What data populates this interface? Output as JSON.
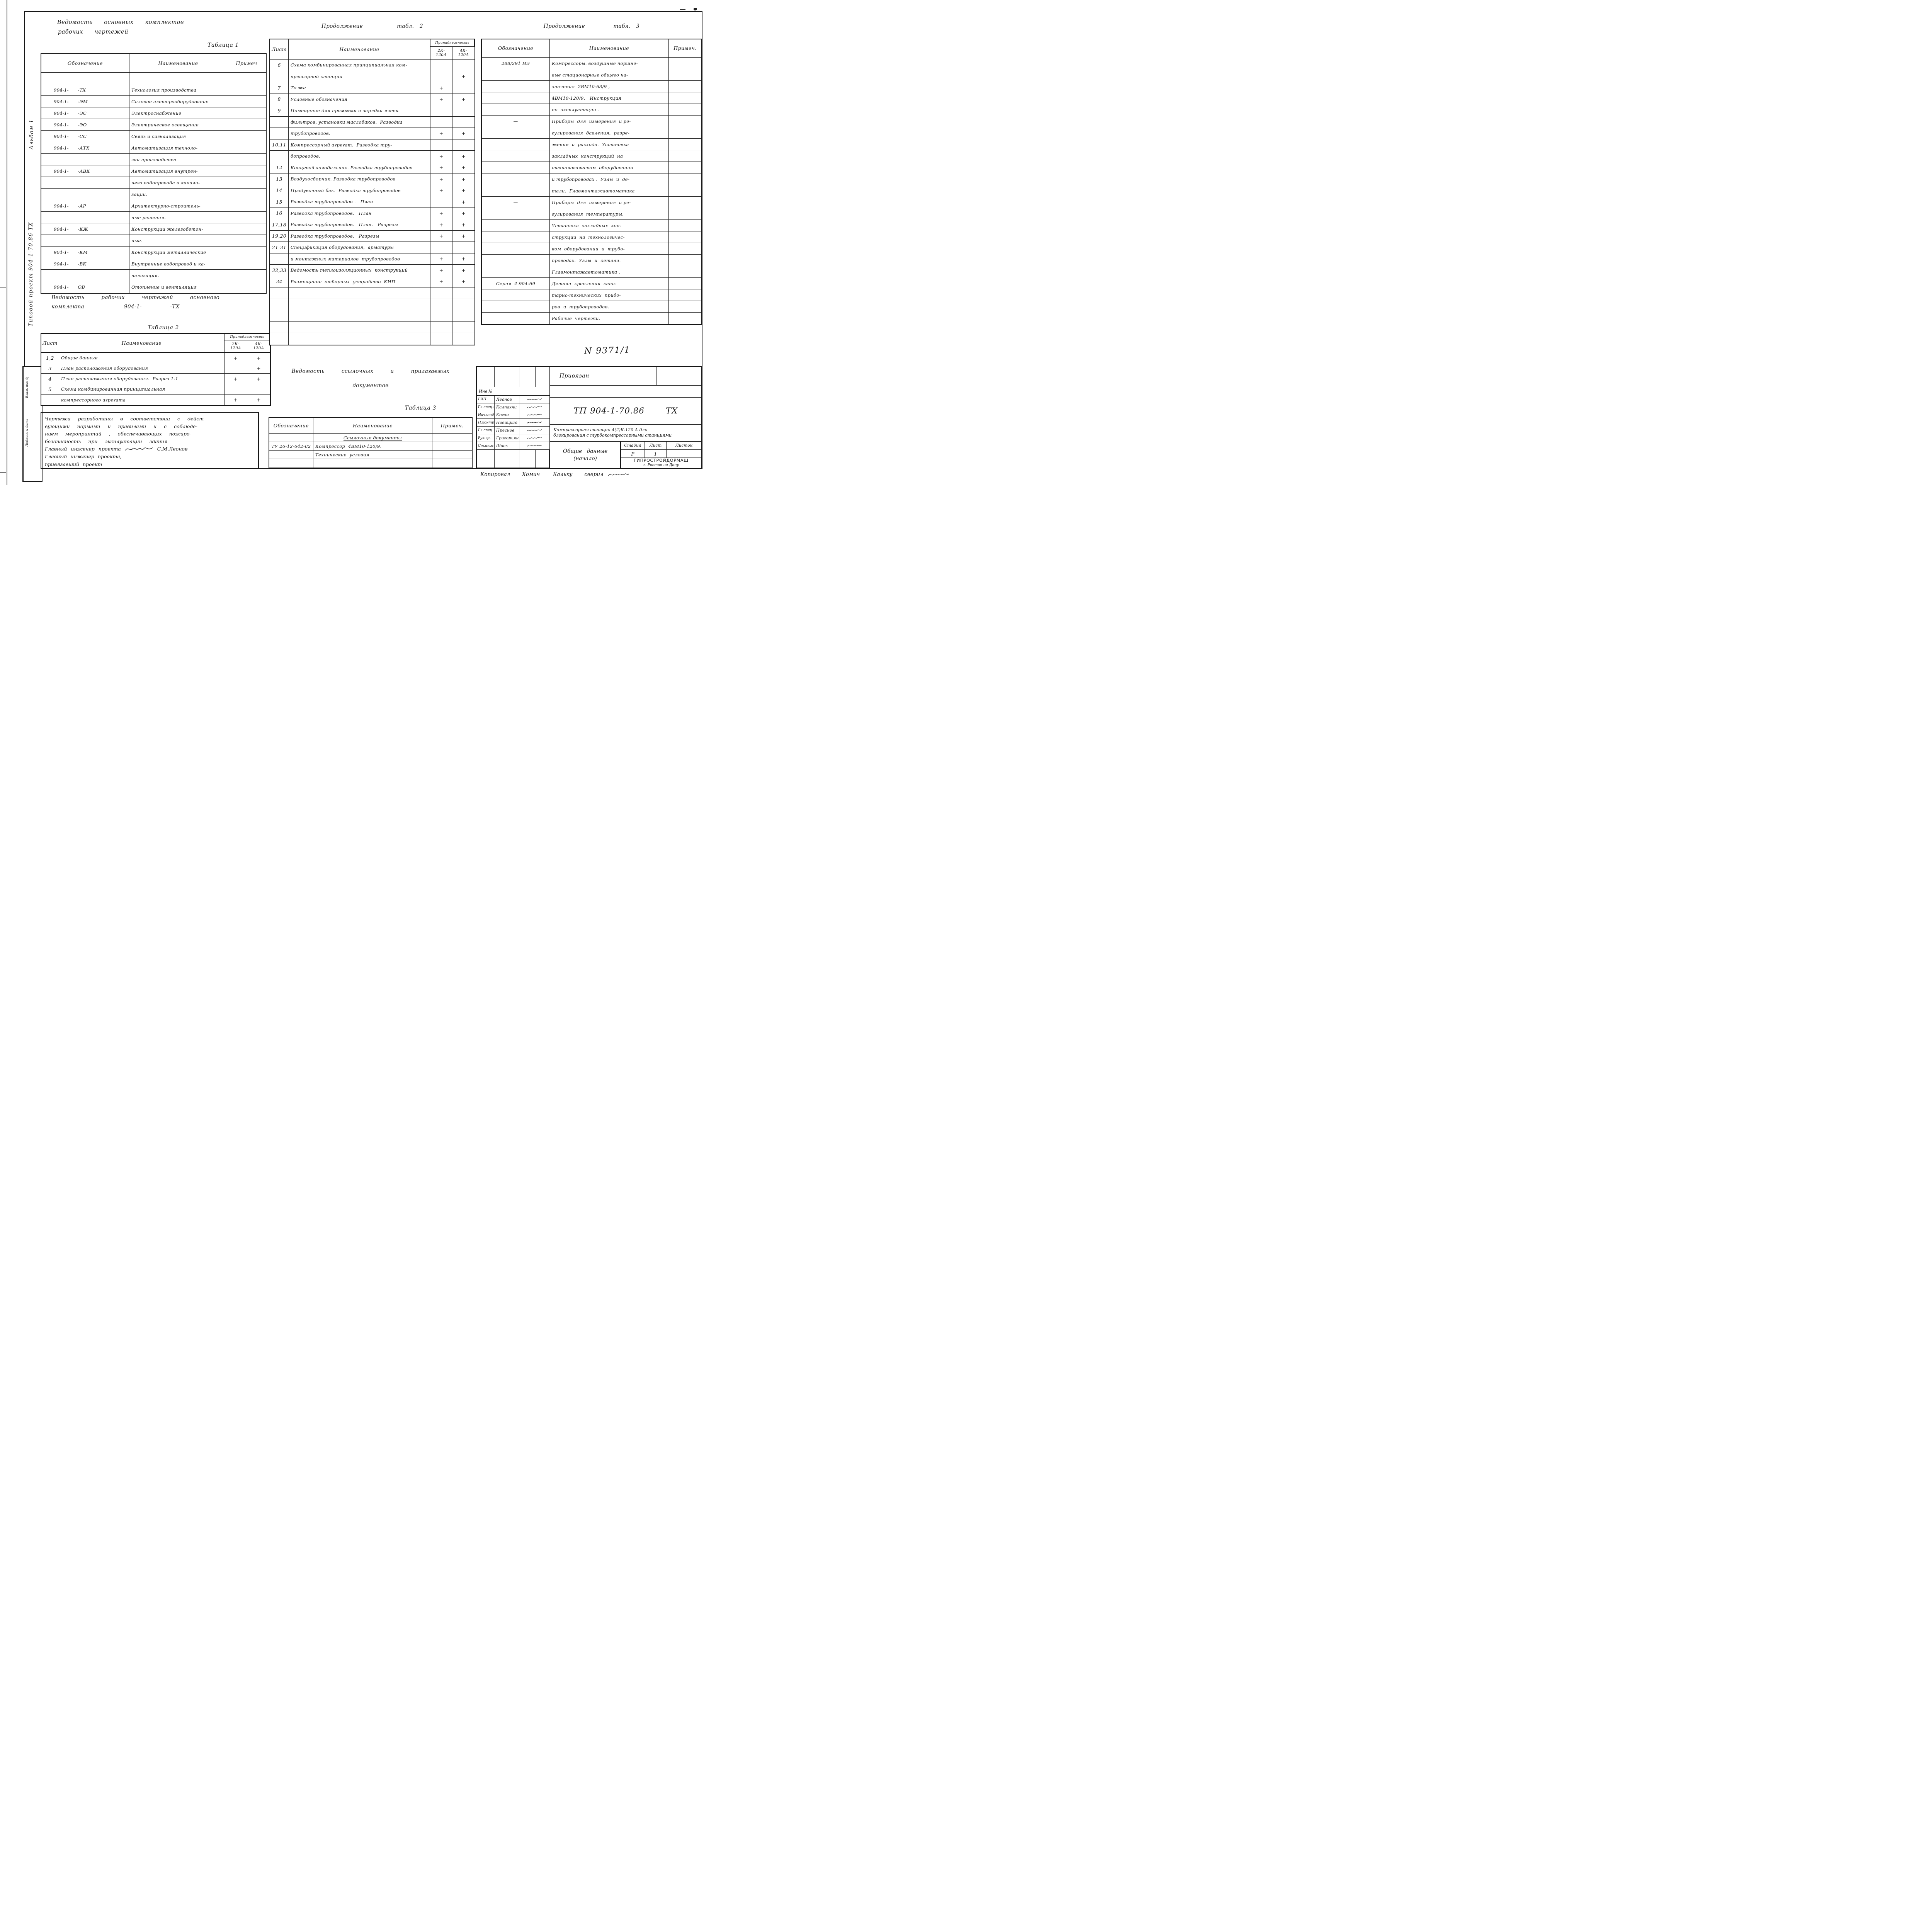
{
  "left_margin": {
    "album": "Альбом 1",
    "project": "Типовой    проект    904-1-70.86 ТХ",
    "stamp_rows": [
      "Взам. инв №",
      "Подпись и дата"
    ]
  },
  "headings": {
    "t1_title_1": "Ведомость  основных  комплектов",
    "t1_title_2": "рабочих  чертежей",
    "t1_label": "Таблица 1",
    "t2_title_1": "Ведомость   рабочих   чертежей   основного",
    "t2_title_2": "комплекта       904-1-     -ТХ",
    "t2_label": "Таблица 2",
    "t2cont_title": "Продолжение      табл. 2",
    "t3_title_1": "Ведомость   ссылочных   и   прилагаемых",
    "t3_title_2": "документов",
    "t3_label": "Таблица 3",
    "t3cont_title": "Продолжение     табл. 3"
  },
  "table1": {
    "headers": {
      "designation": "Обозначение",
      "name": "Наименование",
      "note": "Примеч"
    },
    "rows": [
      [
        "",
        "",
        ""
      ],
      [
        "904-1-      -ТХ",
        "Технология производства",
        ""
      ],
      [
        "904-1-      -ЭМ",
        "Силовое электрооборудование",
        ""
      ],
      [
        "904-1-      -ЭС",
        "Электроснабжение",
        ""
      ],
      [
        "904-1-      -ЭО",
        "Электрическое освещение",
        ""
      ],
      [
        "904-1-      -СС",
        "Связь и сигнализация",
        ""
      ],
      [
        "904-1-      -АТХ",
        "Автоматизация техноло-",
        ""
      ],
      [
        "",
        "гии производства",
        ""
      ],
      [
        "904-1-      -АВК",
        "Автоматизация внутрен-",
        ""
      ],
      [
        "",
        "него водопровода и канали-",
        ""
      ],
      [
        "",
        "зации.",
        ""
      ],
      [
        "904-1-      -АР",
        "Архитектурно-строитель-",
        ""
      ],
      [
        "",
        "ные решения.",
        ""
      ],
      [
        "904-1-      -КЖ",
        "Конструкции железобетон-",
        ""
      ],
      [
        "",
        "ные.",
        ""
      ],
      [
        "904-1-      -КМ",
        "Конструкции металлические",
        ""
      ],
      [
        "904-1-      -ВК",
        "Внутренние водопровод и ка-",
        ""
      ],
      [
        "",
        "нализация.",
        ""
      ],
      [
        "904-1-      ОВ",
        "Отопление и вентиляция",
        ""
      ]
    ]
  },
  "table2": {
    "headers": {
      "sheet": "Лист",
      "name": "Наименование",
      "group": "Принадлежность",
      "k2": "2К-\n120А",
      "k4": "4К-\n120А"
    },
    "rows": [
      [
        "1,2",
        "Общие данные",
        "+",
        "+"
      ],
      [
        "3",
        "План расположения оборудования",
        "",
        "+"
      ],
      [
        "4",
        "План расположения оборудования.  Разрез 1-1",
        "+",
        "+"
      ],
      [
        "5",
        "Схема комбинированная принципиальная",
        "",
        ""
      ],
      [
        "",
        "компрессорного агрегата",
        "+",
        "+"
      ]
    ]
  },
  "table2cont": {
    "headers": {
      "sheet": "Лист",
      "name": "Наименование",
      "group": "Принадлежность",
      "k2": "2К-\n120А",
      "k4": "4К-\n120А"
    },
    "rows": [
      [
        "6",
        "Схема комбинированная принципиальная ком-",
        "",
        ""
      ],
      [
        "",
        "прессорной станции",
        "",
        "+"
      ],
      [
        "7",
        "То же",
        "+",
        ""
      ],
      [
        "8",
        "Условные обозначения",
        "+",
        "+"
      ],
      [
        "9",
        "Помещение для промывки и зарядки ячеек",
        "",
        ""
      ],
      [
        "",
        "фильтров, установки маслобаков.  Разводка",
        "",
        ""
      ],
      [
        "",
        "трубопроводов.",
        "+",
        "+"
      ],
      [
        "10,11",
        "Компрессорный агрегат.  Разводка тру-",
        "",
        ""
      ],
      [
        "",
        "бопроводов.",
        "+",
        "+"
      ],
      [
        "12",
        "Концевой холодильник. Разводка трубопроводов",
        "+",
        "+"
      ],
      [
        "13",
        "Воздухосборник. Разводка трубопроводов",
        "+",
        "+"
      ],
      [
        "14",
        "Продувочный бак.  Разводка трубопроводов",
        "+",
        "+"
      ],
      [
        "15",
        "Разводка трубопроводов .   План",
        "",
        "+"
      ],
      [
        "16",
        "Разводка трубопроводов.   План",
        "+",
        "+"
      ],
      [
        "17,18",
        "Разводка трубопроводов.   План.   Разрезы",
        "+",
        "+"
      ],
      [
        "19,20",
        "Разводка трубопроводов.   Разрезы",
        "+",
        "+"
      ],
      [
        "21-31",
        "Спецификация оборудования,  арматуры",
        "",
        ""
      ],
      [
        "",
        "и монтажных материалов  трубопроводов",
        "+",
        "+"
      ],
      [
        "32,33",
        "Ведомость теплоизоляционных  конструкций",
        "+",
        "+"
      ],
      [
        "34",
        "Размещение  отборных  устройств  КИП",
        "+",
        "+"
      ],
      [
        "",
        "",
        "",
        ""
      ],
      [
        "",
        "",
        "",
        ""
      ],
      [
        "",
        "",
        "",
        ""
      ],
      [
        "",
        "",
        "",
        ""
      ],
      [
        "",
        "",
        "",
        ""
      ]
    ]
  },
  "table3": {
    "headers": {
      "designation": "Обозначение",
      "name": "Наименование",
      "note": "Примеч."
    },
    "rows": [
      [
        "",
        "Ссылочные документы",
        ""
      ],
      [
        "ТУ 26-12-642-82",
        "Компрессор  4ВМ10-120/9.",
        ""
      ],
      [
        "",
        "Технические  условия",
        ""
      ],
      [
        "",
        "",
        ""
      ]
    ]
  },
  "table3cont": {
    "headers": {
      "designation": "Обозначение",
      "name": "Наименование",
      "note": "Примеч."
    },
    "rows": [
      [
        "288/291 ИЭ",
        "Компрессоры. воздушные поршне-",
        ""
      ],
      [
        "",
        "вые стационарные общего на-",
        ""
      ],
      [
        "",
        "значения  2ВМ10-63/9 ,",
        ""
      ],
      [
        "",
        "4ВМ10-120/9.   Инструкция",
        ""
      ],
      [
        "",
        "по  эксплуатации .",
        ""
      ],
      [
        "—",
        "Приборы  для  измерения  и ре-",
        ""
      ],
      [
        "",
        "гулирования  давления,  разре-",
        ""
      ],
      [
        "",
        "жения  и  расхода.  Установка",
        ""
      ],
      [
        "",
        "закладных  конструкций  на",
        ""
      ],
      [
        "",
        "технологическом  оборудовании",
        ""
      ],
      [
        "",
        "и трубопроводах .  Узлы  и  де-",
        ""
      ],
      [
        "",
        "тали.  Главмонтажавтоматика",
        ""
      ],
      [
        "—",
        "Приборы  для  измерения  и ре-",
        ""
      ],
      [
        "",
        "гулирования  температуры.",
        ""
      ],
      [
        "",
        "Установка  закладных  кон-",
        ""
      ],
      [
        "",
        "струкций  на  технологичес-",
        ""
      ],
      [
        "",
        "ком  оборудовании  и  трубо-",
        ""
      ],
      [
        "",
        "проводах.  Узлы  и  детали.",
        ""
      ],
      [
        "",
        "Главмонтажавтоматика .",
        ""
      ],
      [
        "Серия  4.904-69",
        "Детали  крепления  сани-",
        ""
      ],
      [
        "",
        "тарно-технических  прибо-",
        ""
      ],
      [
        "",
        "ров  и  трубопроводов.",
        ""
      ],
      [
        "",
        "Рабочие  чертежи.",
        ""
      ]
    ]
  },
  "note_box": {
    "lines": [
      "Чертежи  разработаны  в  соответствии  с  дейст-",
      "вующими  нормами  и  правилами  и  с  соблюде-",
      "нием  мероприятий ,  обеспечивающих  пожаро-",
      "безопасность  при  эксплуатации  здания"
    ],
    "chief_line": "Главный  инженер  проекта",
    "chief_name": "С.М.Леонов",
    "line2_1": "Главный  инженер  проекта,",
    "line2_2": "привязавший   проект"
  },
  "doc_number": "N 9371/1",
  "title_block": {
    "privyazan": "Привязан",
    "inv_label": "Инв №",
    "code": "ТП 904-1-70.86",
    "mark": "ТХ",
    "subject_1": "Компрессорная  станция  4(2)К-120 А  для",
    "subject_2": "блокирования  с  турбокомпрессорными станциями",
    "stage_label": "Стадия",
    "sheet_label": "Лист",
    "sheets_label": "Листок",
    "stage": "Р",
    "sheet": "1",
    "sheets": "",
    "content_1": "Общие    данные",
    "content_2": "(начало)",
    "org": "ГИПРОСТРОЙДОРМАШ",
    "org_city": "г. Ростов-на-Дону",
    "roles": [
      {
        "role": "ГИП",
        "name": "Леонов"
      },
      {
        "role": "Гл.спец.поТБ",
        "name": "Калпахчи"
      },
      {
        "role": "Нач.отд",
        "name": "Коган"
      },
      {
        "role": "Н.контр.",
        "name": "Новицкая"
      },
      {
        "role": "Гл.спец.",
        "name": "Преснов"
      },
      {
        "role": "Рук.гр.",
        "name": "Григорьян"
      },
      {
        "role": "Ст.инж",
        "name": "Шась"
      }
    ]
  },
  "footer": {
    "copied": "Копировал   Хомич",
    "checked": "Кальку   сверил"
  }
}
